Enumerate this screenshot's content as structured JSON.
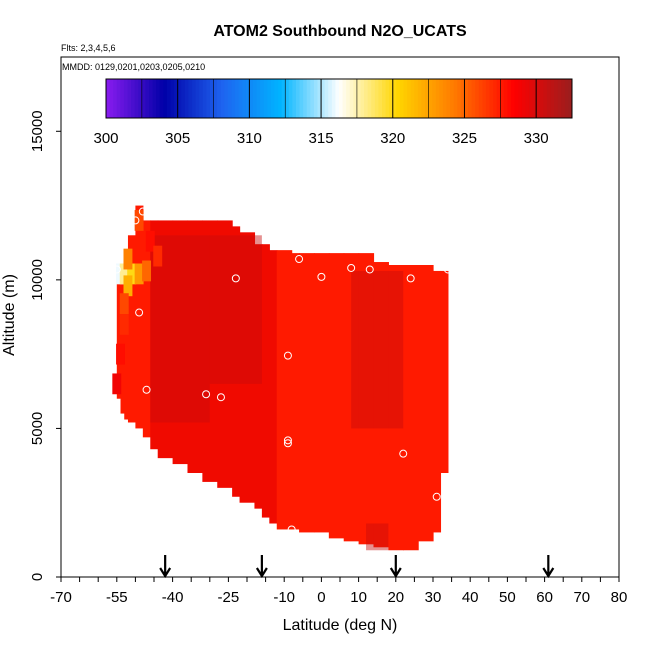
{
  "chart_data": {
    "type": "heatmap",
    "title": "ATOM2 Southbound N2O_UCATS",
    "subtitle_flights": "Flts: 2,3,4,5,6",
    "subtitle_dates": "MMDD: 0129,0201,0203,0205,0210",
    "xlabel": "Latitude (deg N)",
    "ylabel": "Altitude (m)",
    "xlim": [
      -70,
      80
    ],
    "ylim": [
      0,
      17500
    ],
    "x_ticks": [
      -70,
      -55,
      -40,
      -25,
      -10,
      0,
      10,
      20,
      30,
      40,
      50,
      60,
      70,
      80
    ],
    "y_ticks": [
      0,
      5000,
      10000,
      15000
    ],
    "colorbar": {
      "min": 300,
      "max": 332.5,
      "ticks": [
        300,
        305,
        310,
        315,
        320,
        325,
        330
      ],
      "colors": [
        "#8a1cf0",
        "#0000a8",
        "#1e64f0",
        "#00b4ff",
        "#ffffff",
        "#ffd600",
        "#ff7800",
        "#ff0000",
        "#9a1e1e"
      ]
    },
    "field_color": "#f00a00",
    "field_dark_color": "#c80a0a",
    "field_bright_color": "#ff1a00",
    "field_extent": {
      "lat_range": [
        -55,
        34
      ],
      "alt_range": [
        500,
        12500
      ]
    },
    "low_values": [
      {
        "lat": -54,
        "alt": 10200,
        "value": 316
      },
      {
        "lat": -53,
        "alt": 10200,
        "value": 318
      },
      {
        "lat": -51,
        "alt": 10200,
        "value": 320
      },
      {
        "lat": -49,
        "alt": 10200,
        "value": 323
      },
      {
        "lat": -47,
        "alt": 10300,
        "value": 325
      },
      {
        "lat": -52,
        "alt": 9800,
        "value": 322
      },
      {
        "lat": -52,
        "alt": 10700,
        "value": 324
      },
      {
        "lat": -53,
        "alt": 9200,
        "value": 326
      },
      {
        "lat": -53,
        "alt": 8500,
        "value": 327
      },
      {
        "lat": -54,
        "alt": 7500,
        "value": 328
      },
      {
        "lat": -49,
        "alt": 12000,
        "value": 326
      },
      {
        "lat": -46,
        "alt": 11300,
        "value": 328
      },
      {
        "lat": -44,
        "alt": 10800,
        "value": 327
      },
      {
        "lat": -55,
        "alt": 6500,
        "value": 329
      }
    ],
    "sample_points": [
      {
        "lat": -50,
        "alt": 12000
      },
      {
        "lat": -48,
        "alt": 12300
      },
      {
        "lat": -55,
        "alt": 10350
      },
      {
        "lat": -23,
        "alt": 10050
      },
      {
        "lat": -6,
        "alt": 10700
      },
      {
        "lat": 0,
        "alt": 10100
      },
      {
        "lat": 8,
        "alt": 10400
      },
      {
        "lat": 13,
        "alt": 10350
      },
      {
        "lat": 24,
        "alt": 10050
      },
      {
        "lat": 34,
        "alt": 10350
      },
      {
        "lat": -49,
        "alt": 8900
      },
      {
        "lat": -9,
        "alt": 7450
      },
      {
        "lat": -47,
        "alt": 6300
      },
      {
        "lat": -31,
        "alt": 6150
      },
      {
        "lat": -27,
        "alt": 6050
      },
      {
        "lat": -56,
        "alt": 5900
      },
      {
        "lat": -9,
        "alt": 4600
      },
      {
        "lat": -9,
        "alt": 4500
      },
      {
        "lat": 22,
        "alt": 4150
      },
      {
        "lat": 31,
        "alt": 2700
      },
      {
        "lat": -8,
        "alt": 1600
      }
    ],
    "arrows_lat": [
      -42,
      -16,
      20,
      61
    ]
  }
}
